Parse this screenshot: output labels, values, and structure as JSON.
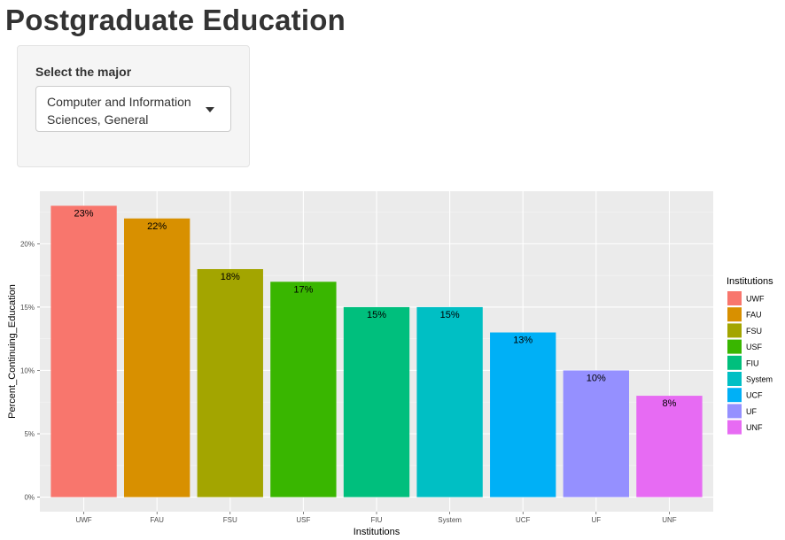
{
  "page": {
    "title": "Postgraduate Education"
  },
  "controls": {
    "select_label": "Select the major",
    "select_value": "Computer and Information Sciences, General"
  },
  "chart_data": {
    "type": "bar",
    "title": "",
    "xlabel": "Institutions",
    "ylabel": "Percent_Continuing_Education",
    "categories": [
      "UWF",
      "FAU",
      "FSU",
      "USF",
      "FIU",
      "System",
      "UCF",
      "UF",
      "UNF"
    ],
    "values": [
      0.23,
      0.22,
      0.18,
      0.17,
      0.15,
      0.15,
      0.13,
      0.1,
      0.08
    ],
    "data_labels": [
      "23%",
      "22%",
      "18%",
      "17%",
      "15%",
      "15%",
      "13%",
      "10%",
      "8%"
    ],
    "colors": [
      "#F8766D",
      "#D89000",
      "#A3A500",
      "#39B600",
      "#00BF7D",
      "#00BFC4",
      "#00B0F6",
      "#9590FF",
      "#E76BF3"
    ],
    "yticks": [
      0,
      0.05,
      0.1,
      0.15,
      0.2
    ],
    "ytick_labels": [
      "0%",
      "5%",
      "10%",
      "15%",
      "20%"
    ],
    "ylim": [
      -0.0115,
      0.2415
    ],
    "grid": true,
    "legend": {
      "title": "Institutions",
      "placement": "right",
      "items": [
        "UWF",
        "FAU",
        "FSU",
        "USF",
        "FIU",
        "System",
        "UCF",
        "UF",
        "UNF"
      ]
    }
  }
}
